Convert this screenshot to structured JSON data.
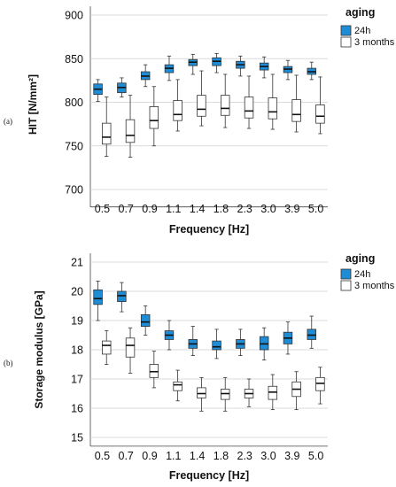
{
  "chart_data": [
    {
      "type": "box",
      "panel_label": "(a)",
      "xlabel": "Frequency  [Hz]",
      "ylabel": "HIT [N/mm²]",
      "ylim": [
        680,
        910
      ],
      "yticks": [
        700,
        750,
        800,
        850,
        900
      ],
      "grid": "horizontal",
      "categories": [
        "0.5",
        "0.7",
        "0.9",
        "1.1",
        "1.4",
        "1.8",
        "2.3",
        "3.0",
        "3.9",
        "5.0"
      ],
      "legend": {
        "title": "aging",
        "position": "top-right",
        "entries": [
          "24h",
          "3 months"
        ]
      },
      "series": [
        {
          "name": "24h",
          "color": "#1f8dd6",
          "boxes": [
            {
              "min": 801,
              "q1": 809,
              "median": 815,
              "q3": 821,
              "max": 826
            },
            {
              "min": 806,
              "q1": 811,
              "median": 817,
              "q3": 822,
              "max": 828
            },
            {
              "min": 818,
              "q1": 826,
              "median": 830,
              "q3": 835,
              "max": 843
            },
            {
              "min": 825,
              "q1": 834,
              "median": 839,
              "q3": 843,
              "max": 853
            },
            {
              "min": 832,
              "q1": 842,
              "median": 846,
              "q3": 849,
              "max": 855
            },
            {
              "min": 834,
              "q1": 842,
              "median": 847,
              "q3": 851,
              "max": 856
            },
            {
              "min": 830,
              "q1": 839,
              "median": 843,
              "q3": 847,
              "max": 853
            },
            {
              "min": 828,
              "q1": 837,
              "median": 841,
              "q3": 845,
              "max": 852
            },
            {
              "min": 826,
              "q1": 834,
              "median": 838,
              "q3": 841,
              "max": 848
            },
            {
              "min": 826,
              "q1": 832,
              "median": 835,
              "q3": 839,
              "max": 846
            }
          ]
        },
        {
          "name": "3 months",
          "color": "#ffffff",
          "boxes": [
            {
              "min": 738,
              "q1": 752,
              "median": 760,
              "q3": 776,
              "max": 806
            },
            {
              "min": 737,
              "q1": 754,
              "median": 762,
              "q3": 780,
              "max": 808
            },
            {
              "min": 750,
              "q1": 770,
              "median": 779,
              "q3": 795,
              "max": 818
            },
            {
              "min": 767,
              "q1": 779,
              "median": 786,
              "q3": 802,
              "max": 826
            },
            {
              "min": 773,
              "q1": 784,
              "median": 792,
              "q3": 808,
              "max": 836
            },
            {
              "min": 771,
              "q1": 785,
              "median": 793,
              "q3": 808,
              "max": 832
            },
            {
              "min": 770,
              "q1": 782,
              "median": 790,
              "q3": 806,
              "max": 830
            },
            {
              "min": 769,
              "q1": 781,
              "median": 789,
              "q3": 805,
              "max": 832
            },
            {
              "min": 766,
              "q1": 778,
              "median": 786,
              "q3": 803,
              "max": 831
            },
            {
              "min": 764,
              "q1": 776,
              "median": 784,
              "q3": 797,
              "max": 829
            }
          ]
        }
      ]
    },
    {
      "type": "box",
      "panel_label": "(b)",
      "xlabel": "Frequency  [Hz]",
      "ylabel": "Storage modulus [GPa]",
      "ylim": [
        14.7,
        21.3
      ],
      "yticks": [
        15,
        16,
        17,
        18,
        19,
        20,
        21
      ],
      "grid": "horizontal",
      "categories": [
        "0.5",
        "0.7",
        "0.9",
        "1.1",
        "1.4",
        "1.8",
        "2.3",
        "3.0",
        "3.9",
        "5.0"
      ],
      "legend": {
        "title": "aging",
        "position": "top-right",
        "entries": [
          "24h",
          "3 months"
        ]
      },
      "series": [
        {
          "name": "24h",
          "color": "#1f8dd6",
          "boxes": [
            {
              "min": 19.0,
              "q1": 19.55,
              "median": 19.75,
              "q3": 20.05,
              "max": 20.35
            },
            {
              "min": 19.3,
              "q1": 19.65,
              "median": 19.85,
              "q3": 20.0,
              "max": 20.3
            },
            {
              "min": 18.5,
              "q1": 18.8,
              "median": 18.95,
              "q3": 19.2,
              "max": 19.5
            },
            {
              "min": 18.0,
              "q1": 18.35,
              "median": 18.5,
              "q3": 18.65,
              "max": 19.0
            },
            {
              "min": 17.8,
              "q1": 18.05,
              "median": 18.2,
              "q3": 18.35,
              "max": 18.8
            },
            {
              "min": 17.7,
              "q1": 18.0,
              "median": 18.1,
              "q3": 18.3,
              "max": 18.7
            },
            {
              "min": 17.8,
              "q1": 18.05,
              "median": 18.2,
              "q3": 18.35,
              "max": 18.7
            },
            {
              "min": 17.65,
              "q1": 18.0,
              "median": 18.2,
              "q3": 18.45,
              "max": 18.75
            },
            {
              "min": 17.85,
              "q1": 18.2,
              "median": 18.4,
              "q3": 18.6,
              "max": 18.95
            },
            {
              "min": 18.05,
              "q1": 18.35,
              "median": 18.5,
              "q3": 18.7,
              "max": 19.15
            }
          ]
        },
        {
          "name": "3 months",
          "color": "#ffffff",
          "boxes": [
            {
              "min": 17.5,
              "q1": 17.85,
              "median": 18.15,
              "q3": 18.3,
              "max": 18.65
            },
            {
              "min": 17.2,
              "q1": 17.75,
              "median": 18.15,
              "q3": 18.4,
              "max": 18.75
            },
            {
              "min": 16.7,
              "q1": 17.05,
              "median": 17.25,
              "q3": 17.5,
              "max": 17.95
            },
            {
              "min": 16.25,
              "q1": 16.6,
              "median": 16.8,
              "q3": 16.9,
              "max": 17.3
            },
            {
              "min": 15.9,
              "q1": 16.35,
              "median": 16.5,
              "q3": 16.7,
              "max": 17.05
            },
            {
              "min": 15.9,
              "q1": 16.3,
              "median": 16.5,
              "q3": 16.65,
              "max": 17.05
            },
            {
              "min": 16.05,
              "q1": 16.35,
              "median": 16.5,
              "q3": 16.65,
              "max": 17.0
            },
            {
              "min": 15.95,
              "q1": 16.3,
              "median": 16.55,
              "q3": 16.75,
              "max": 17.15
            },
            {
              "min": 15.95,
              "q1": 16.4,
              "median": 16.65,
              "q3": 16.9,
              "max": 17.25
            },
            {
              "min": 16.15,
              "q1": 16.6,
              "median": 16.85,
              "q3": 17.05,
              "max": 17.4
            }
          ]
        }
      ]
    }
  ]
}
